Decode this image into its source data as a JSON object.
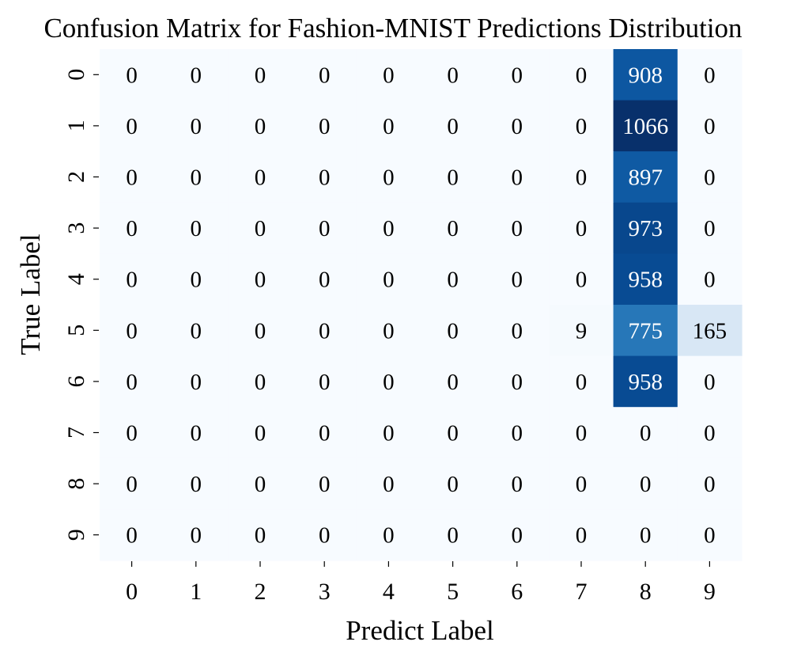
{
  "chart_data": {
    "type": "heatmap",
    "title": "Confusion Matrix for Fashion-MNIST Predictions Distribution",
    "xlabel": "Predict Label",
    "ylabel": "True Label",
    "x_categories": [
      "0",
      "1",
      "2",
      "3",
      "4",
      "5",
      "6",
      "7",
      "8",
      "9"
    ],
    "y_categories": [
      "0",
      "1",
      "2",
      "3",
      "4",
      "5",
      "6",
      "7",
      "8",
      "9"
    ],
    "values": [
      [
        0,
        0,
        0,
        0,
        0,
        0,
        0,
        0,
        908,
        0
      ],
      [
        0,
        0,
        0,
        0,
        0,
        0,
        0,
        0,
        1066,
        0
      ],
      [
        0,
        0,
        0,
        0,
        0,
        0,
        0,
        0,
        897,
        0
      ],
      [
        0,
        0,
        0,
        0,
        0,
        0,
        0,
        0,
        973,
        0
      ],
      [
        0,
        0,
        0,
        0,
        0,
        0,
        0,
        0,
        958,
        0
      ],
      [
        0,
        0,
        0,
        0,
        0,
        0,
        0,
        9,
        775,
        165
      ],
      [
        0,
        0,
        0,
        0,
        0,
        0,
        0,
        0,
        958,
        0
      ],
      [
        0,
        0,
        0,
        0,
        0,
        0,
        0,
        0,
        0,
        0
      ],
      [
        0,
        0,
        0,
        0,
        0,
        0,
        0,
        0,
        0,
        0
      ],
      [
        0,
        0,
        0,
        0,
        0,
        0,
        0,
        0,
        0,
        0
      ]
    ],
    "colormap": "Blues",
    "colorbar": false,
    "grid": false
  }
}
